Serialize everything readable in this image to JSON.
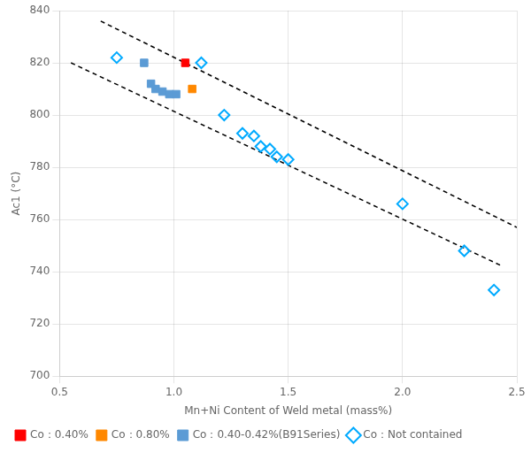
{
  "chart_data": {
    "type": "scatter",
    "xlabel": "Mn+Ni Content of Weld metal (mass%)",
    "ylabel": "Ac1 (°C)",
    "xlim": [
      0.5,
      2.5
    ],
    "ylim": [
      700,
      840
    ],
    "xticks": [
      0.5,
      {
        "value": 1.0,
        "label": "1.0"
      },
      1.5,
      {
        "value": 2.0,
        "label": "2.0"
      },
      2.5
    ],
    "yticks": [
      700,
      720,
      740,
      760,
      780,
      800,
      820,
      840
    ],
    "grid": true,
    "legend": "lower left",
    "series": [
      {
        "type": "line",
        "line_style": "dashed",
        "color": "#000000",
        "x": [
          0.68,
          2.5
        ],
        "values": [
          836,
          757
        ]
      },
      {
        "type": "line",
        "line_style": "dashed",
        "color": "#000000",
        "x": [
          0.55,
          2.44
        ],
        "values": [
          820,
          742
        ]
      },
      {
        "name": "Co：0.40%",
        "type": "scatter",
        "marker": "square",
        "color": "#ff0000",
        "x": [
          1.05
        ],
        "values": [
          820
        ]
      },
      {
        "name": "Co：0.80%",
        "type": "scatter",
        "marker": "square",
        "color": "#ff8800",
        "x": [
          1.08
        ],
        "values": [
          810
        ]
      },
      {
        "name": "Co：0.40-0.42%(B91Series)",
        "type": "scatter",
        "marker": "square",
        "color": "#5b9bd5",
        "x": [
          0.87,
          0.9,
          0.92,
          0.95,
          0.98,
          1.01
        ],
        "values": [
          820,
          812,
          810,
          809,
          808,
          808
        ]
      },
      {
        "name": "Co：Not contained",
        "type": "scatter",
        "marker": "open_diamond",
        "color": "#00aaff",
        "x": [
          0.75,
          1.12,
          1.22,
          1.3,
          1.35,
          1.38,
          1.42,
          1.45,
          1.5,
          2.0,
          2.27,
          2.4
        ],
        "values": [
          822,
          820,
          800,
          793,
          792,
          788,
          787,
          784,
          783,
          766,
          748,
          733
        ]
      }
    ]
  }
}
